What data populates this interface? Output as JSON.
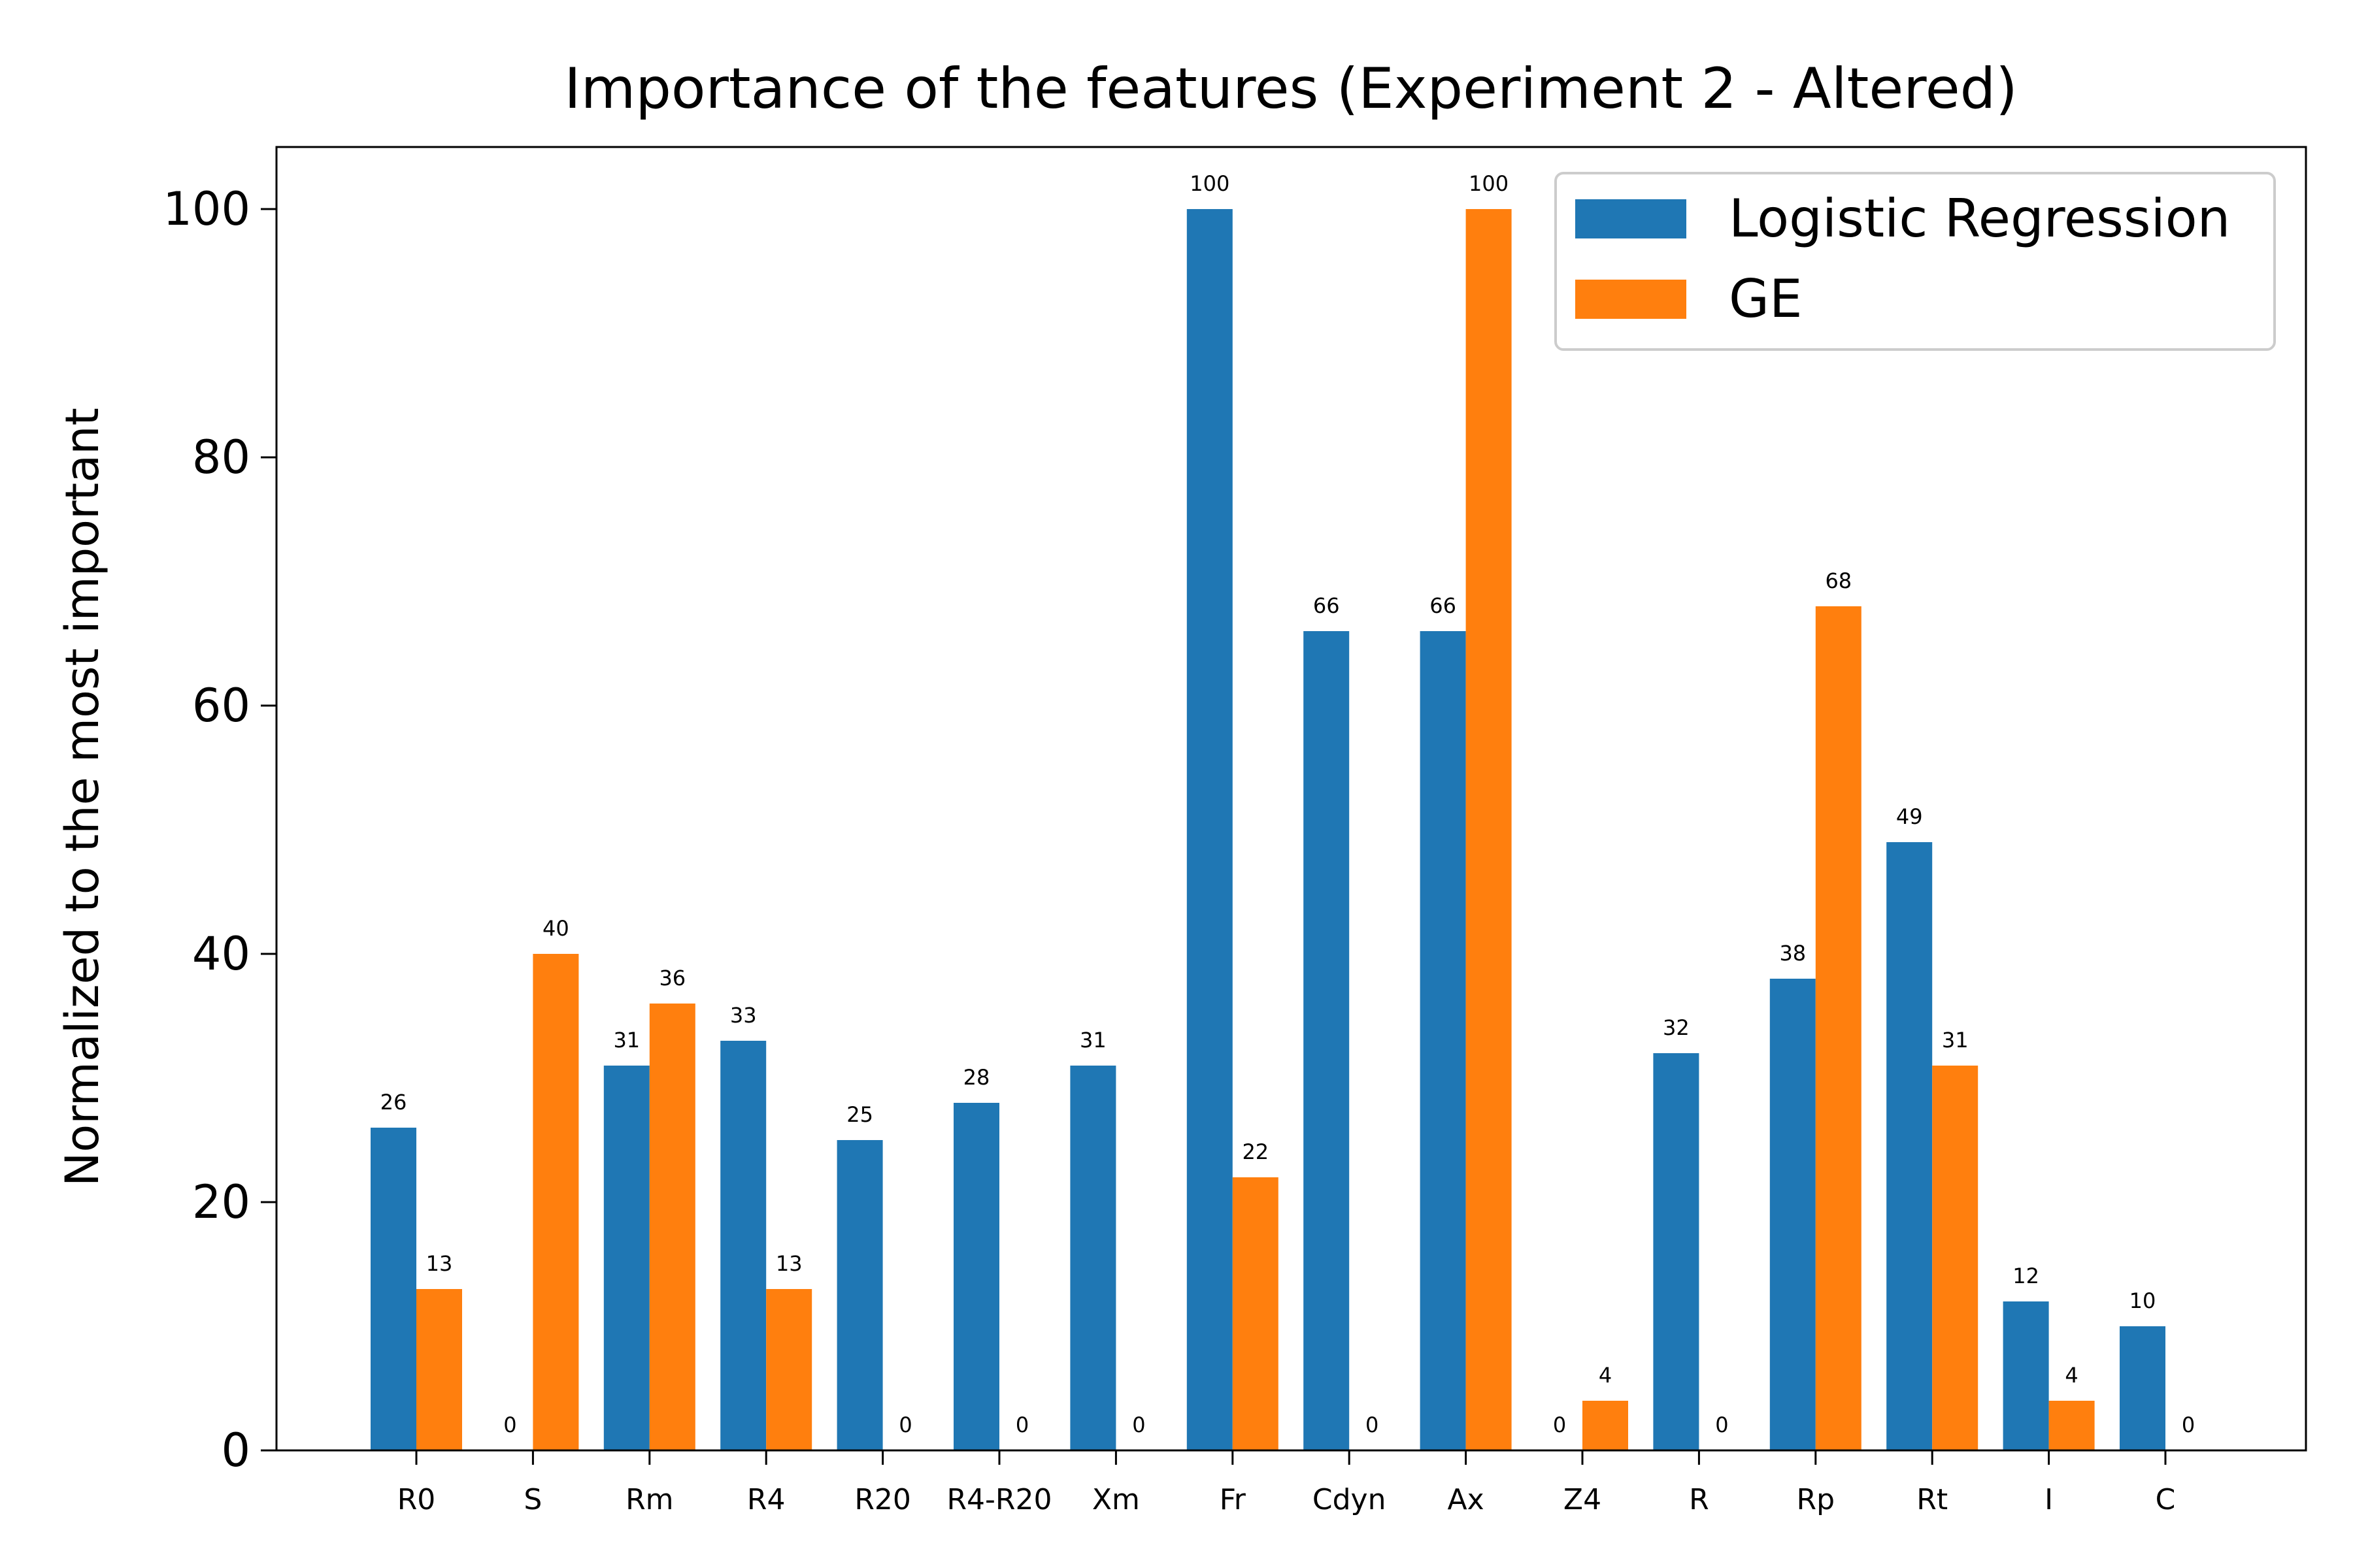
{
  "chart_data": {
    "type": "bar",
    "title": "Importance of the features (Experiment 2 - Altered)",
    "xlabel": "",
    "ylabel": "Normalized to the most important",
    "ylim": [
      0,
      105
    ],
    "yticks": [
      0,
      20,
      40,
      60,
      80,
      100
    ],
    "categories": [
      "R0",
      "S",
      "Rm",
      "R4",
      "R20",
      "R4-R20",
      "Xm",
      "Fr",
      "Cdyn",
      "Ax",
      "Z4",
      "R",
      "Rp",
      "Rt",
      "I",
      "C"
    ],
    "series": [
      {
        "name": "Logistic Regression",
        "color": "#1f77b4",
        "values": [
          26,
          0,
          31,
          33,
          25,
          28,
          31,
          100,
          66,
          66,
          0,
          32,
          38,
          49,
          12,
          10
        ]
      },
      {
        "name": "GE",
        "color": "#ff7f0e",
        "values": [
          13,
          40,
          36,
          13,
          0,
          0,
          0,
          22,
          0,
          100,
          4,
          0,
          68,
          31,
          4,
          0
        ]
      }
    ],
    "grid": false,
    "legend_position": "top-right"
  }
}
